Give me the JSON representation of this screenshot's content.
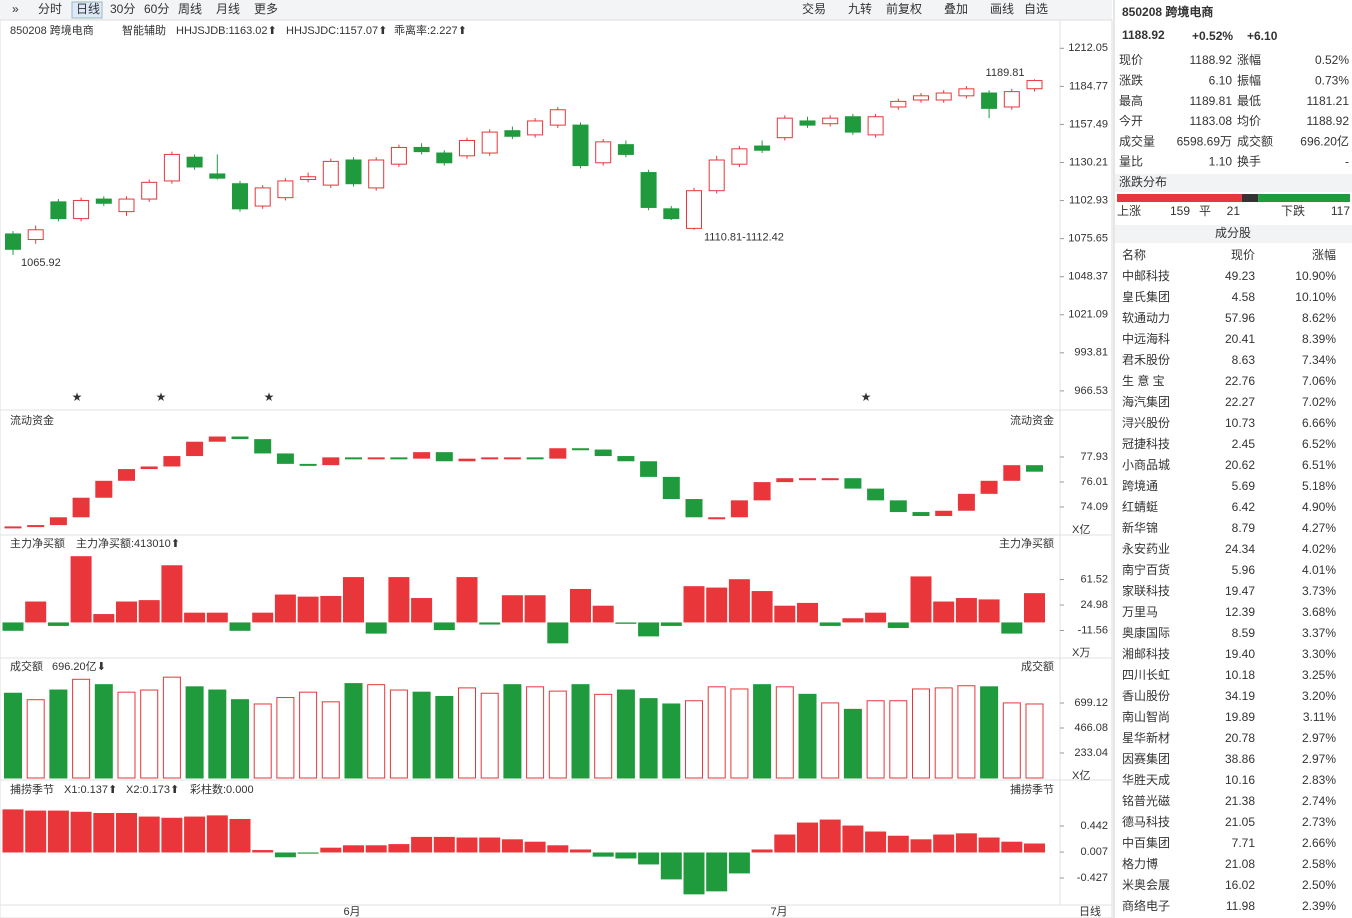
{
  "toolbar": {
    "left": [
      "分时",
      "日线",
      "30分",
      "60分",
      "周线",
      "月线",
      "更多"
    ],
    "right": [
      "交易",
      "九转",
      "前复权",
      "叠加",
      "画线",
      "自选"
    ]
  },
  "chart": {
    "legend": [
      "850208 跨境电商",
      "智能辅助",
      "HHJSJDB:1163.02⬆",
      "HHJSJDC:1157.07⬆",
      "乖离率:2.227⬆"
    ],
    "ylim": [
      960,
      1218
    ],
    "yticks": [
      1212.05,
      1184.77,
      1157.49,
      1130.21,
      1102.93,
      1075.65,
      1048.37,
      1021.09,
      993.81,
      966.53
    ],
    "annotations": [
      "1189.81",
      "1110.81-1112.42",
      "1065.92"
    ],
    "candles": [
      [
        1079,
        1081,
        1064,
        1068
      ],
      [
        1075,
        1085,
        1072,
        1082
      ],
      [
        1102,
        1104,
        1088,
        1090
      ],
      [
        1090,
        1105,
        1088,
        1103
      ],
      [
        1104,
        1106,
        1099,
        1101
      ],
      [
        1095,
        1106,
        1092,
        1104
      ],
      [
        1104,
        1118,
        1102,
        1116
      ],
      [
        1117,
        1138,
        1115,
        1136
      ],
      [
        1134,
        1136,
        1125,
        1127
      ],
      [
        1122,
        1136,
        1118,
        1119
      ],
      [
        1115,
        1117,
        1095,
        1097
      ],
      [
        1099,
        1114,
        1097,
        1112
      ],
      [
        1105,
        1119,
        1103,
        1117
      ],
      [
        1118,
        1123,
        1116,
        1120
      ],
      [
        1114,
        1133,
        1112,
        1131
      ],
      [
        1132,
        1134,
        1113,
        1115
      ],
      [
        1112,
        1134,
        1110,
        1132
      ],
      [
        1129,
        1143,
        1127,
        1141
      ],
      [
        1141,
        1144,
        1136,
        1138
      ],
      [
        1137,
        1139,
        1128,
        1130
      ],
      [
        1135,
        1148,
        1133,
        1146
      ],
      [
        1137,
        1154,
        1135,
        1152
      ],
      [
        1153,
        1156,
        1147,
        1149
      ],
      [
        1150,
        1162,
        1148,
        1160
      ],
      [
        1157,
        1170,
        1155,
        1168
      ],
      [
        1157,
        1159,
        1126,
        1128
      ],
      [
        1130,
        1147,
        1128,
        1145
      ],
      [
        1143,
        1146,
        1134,
        1136
      ],
      [
        1123,
        1125,
        1096,
        1098
      ],
      [
        1097,
        1099,
        1089,
        1090
      ],
      [
        1083,
        1112,
        1082,
        1110
      ],
      [
        1110,
        1135,
        1108,
        1132
      ],
      [
        1129,
        1142,
        1127,
        1140
      ],
      [
        1142,
        1146,
        1137,
        1139
      ],
      [
        1148,
        1164,
        1146,
        1162
      ],
      [
        1160,
        1163,
        1155,
        1157
      ],
      [
        1158,
        1164,
        1156,
        1162
      ],
      [
        1163,
        1165,
        1150,
        1152
      ],
      [
        1150,
        1165,
        1148,
        1163
      ],
      [
        1170,
        1176,
        1168,
        1174
      ],
      [
        1175,
        1180,
        1173,
        1178
      ],
      [
        1175,
        1182,
        1173,
        1180
      ],
      [
        1178,
        1185,
        1176,
        1183
      ],
      [
        1180,
        1182,
        1162,
        1169
      ],
      [
        1170,
        1183,
        1168,
        1181
      ],
      [
        1183.08,
        1189.81,
        1181.21,
        1188.92
      ]
    ]
  },
  "flow": {
    "title": "流动资金",
    "unit": "X亿",
    "ylim": [
      72.17,
      80
    ],
    "yticks": [
      77.93,
      76.01,
      74.09
    ],
    "values": [
      72.6,
      72.7,
      73.3,
      74.8,
      76.1,
      77.0,
      77.2,
      78.0,
      79.1,
      79.5,
      79.3,
      78.2,
      77.4,
      77.3,
      77.9,
      77.8,
      77.9,
      77.8,
      78.3,
      77.6,
      77.8,
      77.9,
      77.9,
      77.8,
      78.6,
      78.5,
      78.0,
      77.6,
      76.4,
      74.7,
      73.3,
      73.3,
      74.6,
      76.0,
      76.3,
      76.3,
      76.3,
      75.5,
      74.6,
      73.7,
      73.4,
      73.8,
      75.1,
      76.1,
      77.3,
      76.8
    ]
  },
  "netbuy": {
    "title": "主力净买额",
    "legend": "主力净买额:413010⬆",
    "unit": "X万",
    "ylim": [
      -46.7,
      96.7
    ],
    "yticks": [
      61.52,
      24.98,
      -11.56
    ],
    "values": [
      -12,
      30,
      -5,
      95,
      12,
      30,
      32,
      82,
      14,
      14,
      -12,
      14,
      40,
      37,
      38,
      65,
      -16,
      65,
      35,
      -11,
      65,
      -3,
      39,
      39,
      -30,
      48,
      24,
      -2,
      -20,
      -5,
      52,
      50,
      62,
      45,
      24,
      28,
      -5,
      6,
      14,
      -8,
      66,
      30,
      35,
      33,
      -16,
      42
    ]
  },
  "volume": {
    "title": "成交额",
    "legend": "696.20亿⬇",
    "unit": "X亿",
    "ylim": [
      0,
      932.2
    ],
    "yticks": [
      699.12,
      466.08,
      233.04
    ],
    "values": [
      790,
      730,
      820,
      920,
      870,
      800,
      820,
      940,
      850,
      820,
      730,
      690,
      750,
      800,
      710,
      880,
      870,
      820,
      800,
      760,
      840,
      790,
      870,
      850,
      810,
      870,
      780,
      820,
      740,
      690,
      720,
      850,
      830,
      870,
      850,
      780,
      700,
      640,
      720,
      720,
      830,
      840,
      860,
      850,
      700,
      690
    ]
  },
  "season": {
    "title": "捕捞季节",
    "legend": [
      "X1:0.137⬆",
      "X2:0.173⬆",
      "彩柱数:0.000"
    ],
    "ylim": [
      -0.878,
      0.877
    ],
    "yticks": [
      0.442,
      0.007,
      -0.427
    ],
    "values": [
      0.72,
      0.7,
      0.7,
      0.68,
      0.66,
      0.66,
      0.6,
      0.58,
      0.6,
      0.62,
      0.56,
      0.04,
      -0.08,
      -0.02,
      0.08,
      0.12,
      0.12,
      0.14,
      0.26,
      0.26,
      0.25,
      0.25,
      0.22,
      0.18,
      0.12,
      0.05,
      -0.07,
      -0.1,
      -0.2,
      -0.45,
      -0.7,
      -0.65,
      -0.35,
      0.05,
      0.3,
      0.5,
      0.55,
      0.45,
      0.35,
      0.28,
      0.22,
      0.3,
      0.32,
      0.25,
      0.18,
      0.15
    ]
  },
  "xaxis": [
    "6月",
    "7月",
    "日线"
  ],
  "panel": {
    "title": "850208 跨境电商",
    "price": "1188.92",
    "pct": "+0.52%",
    "chg": "+6.10",
    "quote": [
      [
        "现价",
        "1188.92",
        "涨幅",
        "0.52%"
      ],
      [
        "涨跌",
        "6.10",
        "振幅",
        "0.73%"
      ],
      [
        "最高",
        "1189.81",
        "最低",
        "1181.21"
      ],
      [
        "今开",
        "1183.08",
        "均价",
        "1188.92"
      ],
      [
        "成交量",
        "6598.69万",
        "成交额",
        "696.20亿"
      ],
      [
        "量比",
        "1.10",
        "换手",
        "-"
      ]
    ],
    "dist_title": "涨跌分布",
    "dist": {
      "labels": [
        "上涨",
        "平",
        "下跌"
      ],
      "values": [
        159,
        21,
        117
      ]
    },
    "list_title": "成分股",
    "header": [
      "名称",
      "现价",
      "涨幅"
    ],
    "rows": [
      [
        "中邮科技",
        "49.23",
        "10.90%",
        "#2a6fd6"
      ],
      [
        "皇氏集团",
        "4.58",
        "10.10%",
        "#2a6fd6"
      ],
      [
        "软通动力",
        "57.96",
        "8.62%",
        "#222"
      ],
      [
        "中远海科",
        "20.41",
        "8.39%",
        "#222"
      ],
      [
        "君禾股份",
        "8.63",
        "7.34%",
        "#2a6fd6"
      ],
      [
        "生 意 宝",
        "22.76",
        "7.06%",
        "#222"
      ],
      [
        "海汽集团",
        "22.27",
        "7.02%",
        "#222"
      ],
      [
        "浔兴股份",
        "10.73",
        "6.66%",
        "#d63aa8"
      ],
      [
        "冠捷科技",
        "2.45",
        "6.52%",
        "#222"
      ],
      [
        "小商品城",
        "20.62",
        "6.51%",
        "#222"
      ],
      [
        "跨境通",
        "5.69",
        "5.18%",
        "#222"
      ],
      [
        "红蜻蜓",
        "6.42",
        "4.90%",
        "#222"
      ],
      [
        "新华锦",
        "8.79",
        "4.27%",
        "#2a6fd6"
      ],
      [
        "永安药业",
        "24.34",
        "4.02%",
        "#2a6fd6"
      ],
      [
        "南宁百货",
        "5.96",
        "4.01%",
        "#222"
      ],
      [
        "家联科技",
        "19.47",
        "3.73%",
        "#2a6fd6"
      ],
      [
        "万里马",
        "12.39",
        "3.68%",
        "#2a6fd6"
      ],
      [
        "奥康国际",
        "8.59",
        "3.37%",
        "#222"
      ],
      [
        "湘邮科技",
        "19.40",
        "3.30%",
        "#222"
      ],
      [
        "四川长虹",
        "10.18",
        "3.25%",
        "#222"
      ],
      [
        "香山股份",
        "34.19",
        "3.20%",
        "#d63aa8"
      ],
      [
        "南山智尚",
        "19.89",
        "3.11%",
        "#222"
      ],
      [
        "星华新材",
        "20.78",
        "2.97%",
        "#2a6fd6"
      ],
      [
        "因赛集团",
        "38.86",
        "2.97%",
        "#2a6fd6"
      ],
      [
        "华胜天成",
        "10.16",
        "2.83%",
        "#222"
      ],
      [
        "铭普光磁",
        "21.38",
        "2.74%",
        "#2a6fd6"
      ],
      [
        "德马科技",
        "21.05",
        "2.73%",
        "#222"
      ],
      [
        "中百集团",
        "7.71",
        "2.66%",
        "#222"
      ],
      [
        "格力博",
        "21.08",
        "2.58%",
        "#222"
      ],
      [
        "米奥会展",
        "16.02",
        "2.50%",
        "#222"
      ],
      [
        "商络电子",
        "11.98",
        "2.39%",
        "#222"
      ]
    ]
  }
}
